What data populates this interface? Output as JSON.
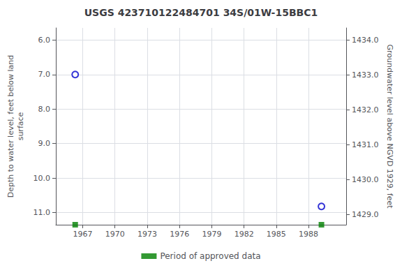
{
  "chart_data": {
    "type": "scatter",
    "title": "USGS 423710122484701 34S/01W-15BBC1",
    "xlim": [
      1964.5,
      1991.5
    ],
    "xticks": [
      1967,
      1970,
      1973,
      1976,
      1979,
      1982,
      1985,
      1988
    ],
    "ylabel": "Depth to water level, feet below land\nsurface",
    "ylim": [
      11.35,
      5.65
    ],
    "yticks": [
      {
        "value": 6.0,
        "label": "6.0"
      },
      {
        "value": 7.0,
        "label": "7.0"
      },
      {
        "value": 8.0,
        "label": "8.0"
      },
      {
        "value": 9.0,
        "label": "9.0"
      },
      {
        "value": 10.0,
        "label": "10.0"
      },
      {
        "value": 11.0,
        "label": "11.0"
      }
    ],
    "y2label": "Groundwater level above NGVD 1929, feet",
    "y2lim": [
      1428.7,
      1434.35
    ],
    "y2ticks": [
      {
        "value": 1429.0,
        "label": "1429.0"
      },
      {
        "value": 1430.0,
        "label": "1430.0"
      },
      {
        "value": 1431.0,
        "label": "1431.0"
      },
      {
        "value": 1432.0,
        "label": "1432.0"
      },
      {
        "value": 1433.0,
        "label": "1433.0"
      },
      {
        "value": 1434.0,
        "label": "1434.0"
      }
    ],
    "grid": true,
    "legend": "bottom",
    "series": [
      {
        "color": "#0000cc",
        "marker": "open_circle",
        "x": [
          1966.3,
          1989.2
        ],
        "values": [
          7.0,
          10.82
        ]
      },
      {
        "name": "Period of approved data",
        "color": "#008000",
        "marker": "square",
        "x": [
          1966.3,
          1989.2
        ],
        "values": [
          11.35,
          11.35
        ]
      }
    ]
  }
}
